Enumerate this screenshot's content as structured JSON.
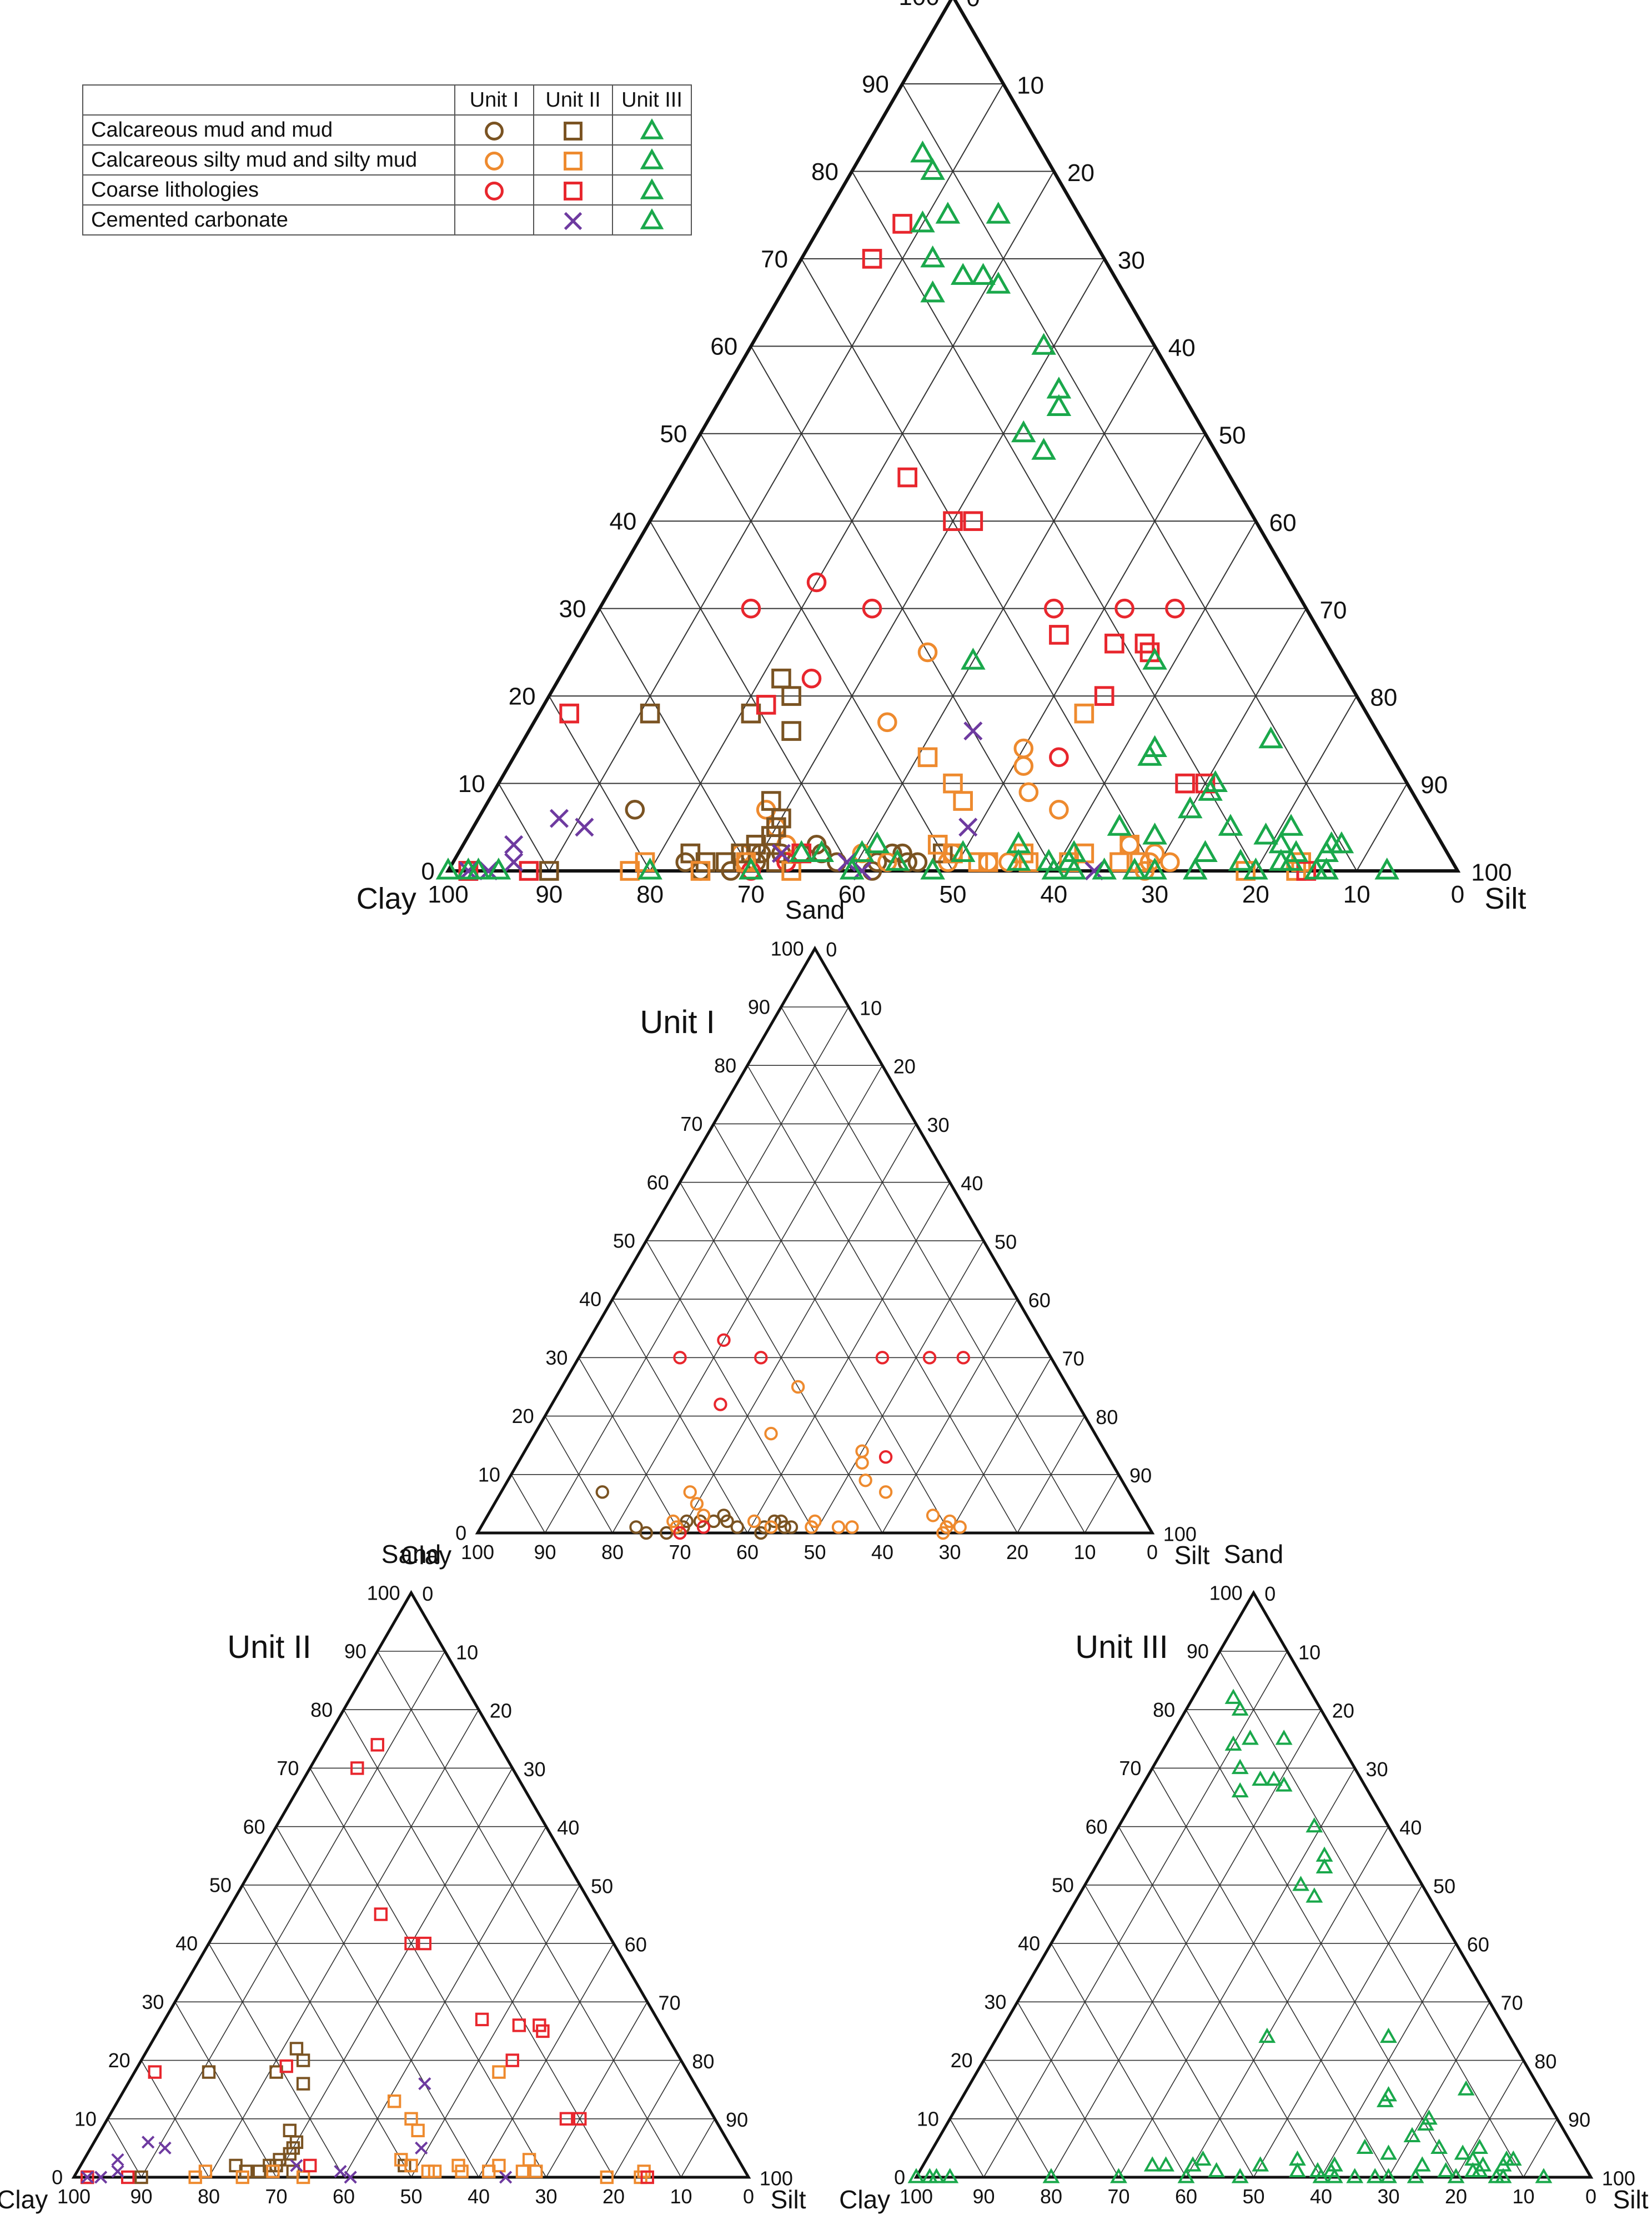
{
  "legend": {
    "headers": [
      "Unit I",
      "Unit II",
      "Unit III"
    ],
    "rows": [
      {
        "label": "Calcareous mud and mud",
        "symbols": [
          "mud-circle",
          "mud-square",
          "triangle"
        ]
      },
      {
        "label": "Calcareous silty mud and silty mud",
        "symbols": [
          "silty-circle",
          "silty-square",
          "triangle"
        ]
      },
      {
        "label": "Coarse lithologies",
        "symbols": [
          "coarse-circle",
          "coarse-square",
          "triangle"
        ]
      },
      {
        "label": "Cemented carbonate",
        "symbols": [
          "",
          "cross",
          "triangle"
        ]
      }
    ]
  },
  "colors": {
    "mud": "#7a5322",
    "silty_mud": "#ee8a2e",
    "coarse": "#e8262d",
    "cemented": "#6e3aa0",
    "unit3": "#1aa84b",
    "axis": "#111111",
    "grid": "#333333"
  },
  "axis_labels": {
    "sand": "Sand",
    "clay": "Clay",
    "silt": "Silt"
  },
  "tick_values": [
    0,
    10,
    20,
    30,
    40,
    50,
    60,
    70,
    80,
    90,
    100
  ],
  "chart_data": [
    {
      "type": "scatter",
      "subtype": "ternary",
      "title": "",
      "axes": [
        "Sand",
        "Clay",
        "Silt"
      ],
      "series": [
        {
          "name": "Unit I - Calcareous mud and mud",
          "marker": "circle",
          "color": "mud",
          "points": [
            [
              7,
              78
            ],
            [
              1,
              76
            ],
            [
              0,
              75
            ],
            [
              0,
              72
            ],
            [
              1,
              69
            ],
            [
              2,
              68
            ],
            [
              2,
              66
            ],
            [
              2,
              64
            ],
            [
              3,
              62
            ],
            [
              2,
              62
            ],
            [
              1,
              57
            ],
            [
              2,
              55
            ],
            [
              1,
              54
            ],
            [
              2,
              54
            ],
            [
              1,
              53
            ],
            [
              1,
              61
            ],
            [
              0,
              58
            ]
          ]
        },
        {
          "name": "Unit I - Calcareous silty mud and silty mud",
          "marker": "circle",
          "color": "silty_mud",
          "points": [
            [
              25,
              40
            ],
            [
              17,
              48
            ],
            [
              14,
              36
            ],
            [
              12,
              37
            ],
            [
              9,
              38
            ],
            [
              7,
              36
            ],
            [
              3,
              31
            ],
            [
              2,
              29
            ],
            [
              1,
              30
            ],
            [
              0,
              31
            ],
            [
              1,
              28
            ],
            [
              7,
              65
            ],
            [
              5,
              65
            ],
            [
              3,
              65
            ],
            [
              2,
              70
            ],
            [
              1,
              70
            ],
            [
              1,
              50
            ],
            [
              2,
              49
            ],
            [
              1,
              44
            ],
            [
              1,
              46
            ],
            [
              2,
              58
            ],
            [
              1,
              56
            ]
          ]
        },
        {
          "name": "Unit I - Coarse lithologies",
          "marker": "circle",
          "color": "coarse",
          "points": [
            [
              30,
              55
            ],
            [
              33,
              47
            ],
            [
              30,
              43
            ],
            [
              30,
              25
            ],
            [
              30,
              18
            ],
            [
              30,
              13
            ],
            [
              22,
              53
            ],
            [
              13,
              33
            ],
            [
              0,
              70
            ],
            [
              1,
              66
            ]
          ]
        },
        {
          "name": "Unit II - Calcareous mud and mud",
          "marker": "square",
          "color": "mud",
          "points": [
            [
              18,
              71
            ],
            [
              18,
              61
            ],
            [
              16,
              58
            ],
            [
              20,
              56
            ],
            [
              22,
              56
            ],
            [
              8,
              64
            ],
            [
              6,
              64
            ],
            [
              5,
              65
            ],
            [
              4,
              66
            ],
            [
              3,
              68
            ],
            [
              2,
              70
            ],
            [
              2,
              69
            ],
            [
              1,
              72
            ],
            [
              1,
              67
            ],
            [
              2,
              75
            ],
            [
              1,
              74
            ],
            [
              0,
              90
            ],
            [
              0,
              98
            ],
            [
              2,
              50
            ]
          ]
        },
        {
          "name": "Unit II - Calcareous silty mud and silty mud",
          "marker": "square",
          "color": "silty_mud",
          "points": [
            [
              18,
              28
            ],
            [
              13,
              46
            ],
            [
              10,
              45
            ],
            [
              8,
              45
            ],
            [
              0,
              75
            ],
            [
              0,
              66
            ],
            [
              1,
              70
            ],
            [
              0,
              82
            ],
            [
              1,
              80
            ],
            [
              3,
              50
            ],
            [
              2,
              49
            ],
            [
              1,
              46
            ],
            [
              1,
              47
            ],
            [
              1,
              42
            ],
            [
              2,
              42
            ],
            [
              1,
              38
            ],
            [
              1,
              33
            ],
            [
              1,
              31
            ],
            [
              3,
              31
            ],
            [
              2,
              36
            ],
            [
              0,
              21
            ],
            [
              0,
              16
            ],
            [
              1,
              15
            ]
          ]
        },
        {
          "name": "Unit II - Coarse lithologies",
          "marker": "square",
          "color": "coarse",
          "points": [
            [
              74,
              18
            ],
            [
              70,
              23
            ],
            [
              45,
              32
            ],
            [
              40,
              30
            ],
            [
              40,
              28
            ],
            [
              27,
              26
            ],
            [
              26,
              21
            ],
            [
              25,
              18
            ],
            [
              26,
              18
            ],
            [
              20,
              25
            ],
            [
              19,
              59
            ],
            [
              10,
              20
            ],
            [
              10,
              22
            ],
            [
              18,
              79
            ],
            [
              0,
              15
            ],
            [
              0,
              92
            ],
            [
              0,
              98
            ],
            [
              2,
              64
            ]
          ]
        },
        {
          "name": "Unit II - Cemented carbonate",
          "marker": "cross",
          "color": "cemented",
          "points": [
            [
              16,
              40
            ],
            [
              5,
              46
            ],
            [
              5,
              84
            ],
            [
              6,
              86
            ],
            [
              3,
              92
            ],
            [
              1,
              93
            ],
            [
              0,
              96
            ],
            [
              0,
              98
            ],
            [
              1,
              60
            ],
            [
              0,
              59
            ],
            [
              0,
              36
            ],
            [
              2,
              66
            ]
          ]
        },
        {
          "name": "Unit III",
          "marker": "triangle",
          "color": "unit3",
          "points": [
            [
              82,
              12
            ],
            [
              80,
              12
            ],
            [
              75,
              13
            ],
            [
              75,
              8
            ],
            [
              74,
              16
            ],
            [
              70,
              17
            ],
            [
              68,
              15
            ],
            [
              68,
              13
            ],
            [
              67,
              12
            ],
            [
              66,
              19
            ],
            [
              60,
              11
            ],
            [
              55,
              12
            ],
            [
              53,
              13
            ],
            [
              50,
              18
            ],
            [
              48,
              17
            ],
            [
              24,
              36
            ],
            [
              24,
              18
            ],
            [
              15,
              11
            ],
            [
              14,
              23
            ],
            [
              13,
              24
            ],
            [
              10,
              19
            ],
            [
              9,
              20
            ],
            [
              7,
              23
            ],
            [
              5,
              20
            ],
            [
              5,
              31
            ],
            [
              4,
              28
            ],
            [
              4,
              17
            ],
            [
              3,
              11
            ],
            [
              3,
              10
            ],
            [
              3,
              16
            ],
            [
              2,
              12
            ],
            [
              2,
              24
            ],
            [
              2,
              15
            ],
            [
              1,
              21
            ],
            [
              1,
              17
            ],
            [
              1,
              16
            ],
            [
              0,
              100
            ],
            [
              0,
              98
            ],
            [
              0,
              97
            ],
            [
              0,
              95
            ],
            [
              0,
              80
            ],
            [
              0,
              70
            ],
            [
              0,
              60
            ],
            [
              0,
              52
            ],
            [
              0,
              40
            ],
            [
              0,
              38
            ],
            [
              0,
              35
            ],
            [
              0,
              32
            ],
            [
              0,
              30
            ],
            [
              0,
              26
            ],
            [
              0,
              20
            ],
            [
              0,
              14
            ],
            [
              0,
              13
            ],
            [
              0,
              7
            ],
            [
              2,
              48
            ],
            [
              1,
              40
            ],
            [
              3,
              42
            ],
            [
              2,
              37
            ],
            [
              1,
              38
            ],
            [
              1,
              43
            ],
            [
              2,
              64
            ],
            [
              2,
              58
            ],
            [
              3,
              56
            ],
            [
              2,
              62
            ],
            [
              1,
              55
            ],
            [
              5,
              14
            ]
          ]
        }
      ]
    },
    {
      "type": "scatter",
      "subtype": "ternary",
      "title": "Unit I",
      "axes": [
        "Sand",
        "Clay",
        "Silt"
      ],
      "series_ref": [
        "Unit I - Calcareous mud and mud",
        "Unit I - Calcareous silty mud and silty mud",
        "Unit I - Coarse lithologies"
      ]
    },
    {
      "type": "scatter",
      "subtype": "ternary",
      "title": "Unit II",
      "axes": [
        "Sand",
        "Clay",
        "Silt"
      ],
      "series_ref": [
        "Unit II - Calcareous mud and mud",
        "Unit II - Calcareous silty mud and silty mud",
        "Unit II - Coarse lithologies",
        "Unit II - Cemented carbonate"
      ]
    },
    {
      "type": "scatter",
      "subtype": "ternary",
      "title": "Unit III",
      "axes": [
        "Sand",
        "Clay",
        "Silt"
      ],
      "series_ref": [
        "Unit III"
      ]
    }
  ]
}
